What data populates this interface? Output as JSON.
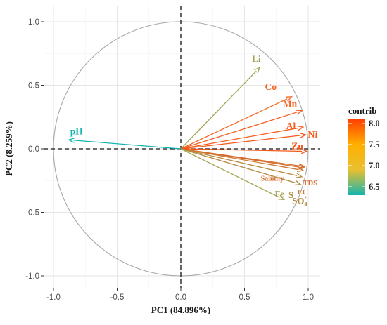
{
  "chart_data": {
    "type": "pca-biplot",
    "xlabel": "PC1 (84.896%)",
    "ylabel": "PC2 (8.259%)",
    "xlim": [
      -1.1,
      1.1
    ],
    "ylim": [
      -1.1,
      1.1
    ],
    "x_ticks": [
      "-1.0",
      "-0.5",
      "0.0",
      "0.5",
      "1.0"
    ],
    "y_ticks": [
      "-1.0",
      "-0.5",
      "0.0",
      "0.5",
      "1.0"
    ],
    "grid": true,
    "unit_circle": true,
    "variables": [
      {
        "label": "Li",
        "x": 0.62,
        "y": 0.64,
        "contrib": 6.95,
        "color": "#a5a55a"
      },
      {
        "label": "Co",
        "x": 0.87,
        "y": 0.41,
        "contrib": 7.92,
        "color": "#f26a28"
      },
      {
        "label": "Mn",
        "x": 0.95,
        "y": 0.3,
        "contrib": 7.98,
        "color": "#f4601f"
      },
      {
        "label": "Al",
        "x": 0.96,
        "y": 0.17,
        "contrib": 7.99,
        "color": "#f45d1d"
      },
      {
        "label": "Ni",
        "x": 0.98,
        "y": 0.11,
        "contrib": 8.02,
        "color": "#f55a1a"
      },
      {
        "label": "Zn",
        "x": 0.99,
        "y": -0.02,
        "contrib": 8.04,
        "color": "#f55718"
      },
      {
        "label": "Salinity",
        "x": 0.97,
        "y": -0.14,
        "contrib": 7.65,
        "color": "#d66b2a"
      },
      {
        "label": "TDS",
        "x": 0.97,
        "y": -0.15,
        "contrib": 7.65,
        "color": "#d66b2a"
      },
      {
        "label": "EC",
        "x": 0.96,
        "y": -0.17,
        "contrib": 7.5,
        "color": "#c97a35"
      },
      {
        "label": "S",
        "x": 0.95,
        "y": -0.22,
        "contrib": 7.4,
        "color": "#b78a3c"
      },
      {
        "label": "SO4",
        "x": 0.94,
        "y": -0.28,
        "contrib": 7.35,
        "color": "#b0883d"
      },
      {
        "label": "Fe",
        "x": 0.81,
        "y": -0.4,
        "contrib": 6.95,
        "color": "#a8a458"
      },
      {
        "label": "pH",
        "x": -0.88,
        "y": 0.07,
        "contrib": 6.4,
        "color": "#16b3b0"
      }
    ],
    "legend": {
      "title": "contrib",
      "ticks": [
        "8.0",
        "7.5",
        "7.0",
        "6.5"
      ],
      "tick_values": [
        8.0,
        7.5,
        7.0,
        6.5
      ],
      "range": [
        6.3,
        8.1
      ],
      "position": "right",
      "gradient": [
        "#16b3b0",
        "#e8c030",
        "#ffb000",
        "#ff4000"
      ]
    }
  }
}
